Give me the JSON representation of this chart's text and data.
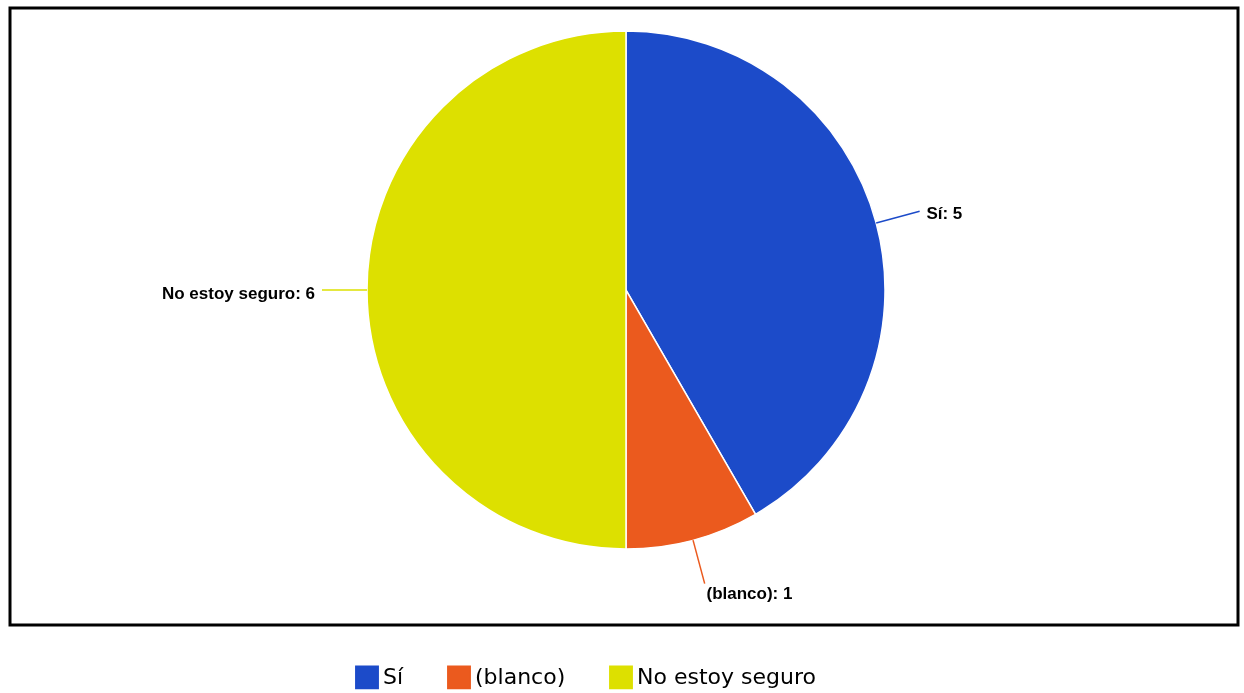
{
  "chart_data": {
    "type": "pie",
    "categories": [
      "Sí",
      "(blanco)",
      "No estoy seguro"
    ],
    "values": [
      5,
      1,
      6
    ],
    "colors": [
      "#1c4bc9",
      "#eb5a1e",
      "#dde000"
    ],
    "value_labels": [
      "Sí: 5",
      "(blanco): 1",
      "No estoy seguro: 6"
    ],
    "legend": "bottom"
  }
}
